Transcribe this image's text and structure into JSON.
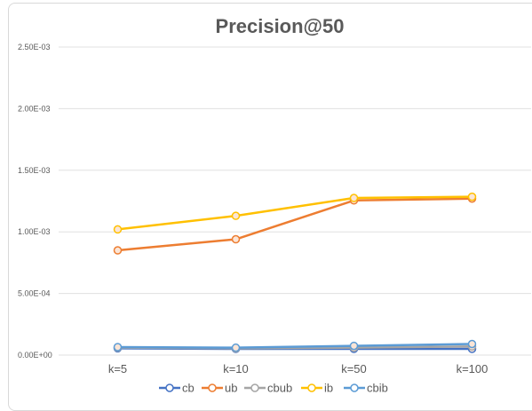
{
  "chart_data": {
    "type": "line",
    "title": "Precision@50",
    "xlabel": "",
    "ylabel": "",
    "categories": [
      "k=5",
      "k=10",
      "k=50",
      "k=100"
    ],
    "ylim": [
      0,
      0.0025
    ],
    "yticks": [
      {
        "value": 0,
        "label": "0.00E+00"
      },
      {
        "value": 0.0005,
        "label": "5.00E-04"
      },
      {
        "value": 0.001,
        "label": "1.00E-03"
      },
      {
        "value": 0.0015,
        "label": "1.50E-03"
      },
      {
        "value": 0.002,
        "label": "2.00E-03"
      },
      {
        "value": 0.0025,
        "label": "2.50E-03"
      }
    ],
    "grid": true,
    "legend_position": "bottom",
    "series": [
      {
        "name": "cb",
        "color": "#4472c4",
        "values": [
          5.5e-05,
          5e-05,
          5e-05,
          5e-05
        ]
      },
      {
        "name": "ub",
        "color": "#ed7d31",
        "values": [
          0.00085,
          0.00094,
          0.001255,
          0.00127
        ]
      },
      {
        "name": "cbub",
        "color": "#a5a5a5",
        "values": [
          6e-05,
          5.5e-05,
          6e-05,
          7e-05
        ]
      },
      {
        "name": "ib",
        "color": "#ffc000",
        "values": [
          0.00102,
          0.00113,
          0.001275,
          0.001285
        ]
      },
      {
        "name": "cbib",
        "color": "#5b9bd5",
        "values": [
          6.5e-05,
          6e-05,
          7.5e-05,
          9e-05
        ]
      }
    ]
  }
}
